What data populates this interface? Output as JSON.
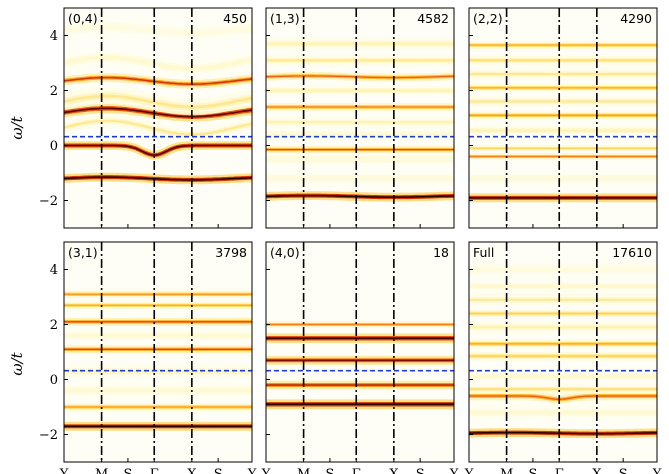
{
  "chart_data": {
    "type": "heatmap",
    "description_free": true,
    "ylabel": "ω/t",
    "ylim": [
      -3,
      5
    ],
    "yticks": [
      -2,
      0,
      2,
      4
    ],
    "ytick_labels": [
      "−2",
      "0",
      "2",
      "4"
    ],
    "x_path_labels": [
      "Y",
      "M",
      "S",
      "Γ",
      "X",
      "S",
      "Y"
    ],
    "x_path_positions": [
      0,
      1,
      1.7,
      2.4,
      3.4,
      4.1,
      5
    ],
    "high_symmetry_vlines": [
      1,
      2.4,
      3.4
    ],
    "fermi_level": 0.32,
    "colors": {
      "fermi_line": "#1f3bd6",
      "vline": "#000000",
      "colormap": [
        "#ffffff",
        "#fff8c8",
        "#ffd85a",
        "#ff9d1e",
        "#e0400a",
        "#8a0c00",
        "#2a0000"
      ]
    },
    "panels": [
      {
        "label": "(0,4)",
        "count": "450",
        "bands": [
          {
            "e": -1.2,
            "i": 1.0,
            "w": 0.08,
            "amp": 0.05
          },
          {
            "e": 0.0,
            "i": 0.95,
            "w": 0.08,
            "amp": -0.35,
            "dip": true
          },
          {
            "e": 0.65,
            "i": 0.25,
            "w": 0.1,
            "amp": 0.25
          },
          {
            "e": 1.2,
            "i": 0.9,
            "w": 0.09,
            "amp": 0.15
          },
          {
            "e": 1.6,
            "i": 0.25,
            "w": 0.15,
            "amp": 0.2
          },
          {
            "e": 2.35,
            "i": 0.7,
            "w": 0.08,
            "amp": 0.12
          },
          {
            "e": 3.0,
            "i": 0.15,
            "w": 0.15,
            "amp": 0.2
          },
          {
            "e": 4.2,
            "i": 0.1,
            "w": 0.2,
            "amp": 0.1
          }
        ]
      },
      {
        "label": "(1,3)",
        "count": "4582",
        "bands": [
          {
            "e": -1.85,
            "i": 1.0,
            "w": 0.08,
            "amp": 0.03
          },
          {
            "e": -1.2,
            "i": 0.12,
            "w": 0.15,
            "amp": 0.0
          },
          {
            "e": -0.5,
            "i": 0.12,
            "w": 0.15,
            "amp": 0.0
          },
          {
            "e": -0.15,
            "i": 0.65,
            "w": 0.06,
            "amp": 0.0
          },
          {
            "e": 0.4,
            "i": 0.15,
            "w": 0.12,
            "amp": 0.0
          },
          {
            "e": 0.85,
            "i": 0.2,
            "w": 0.1,
            "amp": 0.0
          },
          {
            "e": 1.4,
            "i": 0.55,
            "w": 0.07,
            "amp": 0.0
          },
          {
            "e": 2.0,
            "i": 0.2,
            "w": 0.1,
            "amp": 0.0
          },
          {
            "e": 2.5,
            "i": 0.6,
            "w": 0.07,
            "amp": 0.03
          },
          {
            "e": 3.1,
            "i": 0.25,
            "w": 0.1,
            "amp": 0.0
          },
          {
            "e": 3.7,
            "i": 0.2,
            "w": 0.12,
            "amp": 0.0
          }
        ]
      },
      {
        "label": "(2,2)",
        "count": "4290",
        "bands": [
          {
            "e": -1.9,
            "i": 1.0,
            "w": 0.08,
            "amp": 0.0
          },
          {
            "e": -1.2,
            "i": 0.12,
            "w": 0.15,
            "amp": 0.0
          },
          {
            "e": -0.4,
            "i": 0.55,
            "w": 0.06,
            "amp": 0.0
          },
          {
            "e": -0.1,
            "i": 0.35,
            "w": 0.06,
            "amp": 0.0
          },
          {
            "e": 0.55,
            "i": 0.2,
            "w": 0.1,
            "amp": 0.0
          },
          {
            "e": 1.1,
            "i": 0.5,
            "w": 0.07,
            "amp": 0.0
          },
          {
            "e": 1.6,
            "i": 0.25,
            "w": 0.1,
            "amp": 0.0
          },
          {
            "e": 2.1,
            "i": 0.45,
            "w": 0.07,
            "amp": 0.0
          },
          {
            "e": 2.6,
            "i": 0.25,
            "w": 0.1,
            "amp": 0.0
          },
          {
            "e": 3.1,
            "i": 0.3,
            "w": 0.08,
            "amp": 0.0
          },
          {
            "e": 3.65,
            "i": 0.45,
            "w": 0.07,
            "amp": 0.0
          }
        ]
      },
      {
        "label": "(3,1)",
        "count": "3798",
        "bands": [
          {
            "e": -1.7,
            "i": 1.0,
            "w": 0.08,
            "amp": 0.0
          },
          {
            "e": -1.0,
            "i": 0.5,
            "w": 0.07,
            "amp": 0.0
          },
          {
            "e": -0.4,
            "i": 0.15,
            "w": 0.15,
            "amp": 0.0
          },
          {
            "e": 0.3,
            "i": 0.2,
            "w": 0.12,
            "amp": 0.0
          },
          {
            "e": 1.1,
            "i": 0.65,
            "w": 0.07,
            "amp": 0.0
          },
          {
            "e": 1.6,
            "i": 0.15,
            "w": 0.12,
            "amp": 0.0
          },
          {
            "e": 2.1,
            "i": 0.65,
            "w": 0.07,
            "amp": 0.0
          },
          {
            "e": 2.7,
            "i": 0.45,
            "w": 0.07,
            "amp": 0.0
          },
          {
            "e": 3.1,
            "i": 0.5,
            "w": 0.07,
            "amp": 0.0
          }
        ]
      },
      {
        "label": "(4,0)",
        "count": "18",
        "bands": [
          {
            "e": -0.9,
            "i": 1.0,
            "w": 0.09,
            "amp": 0.0
          },
          {
            "e": -0.2,
            "i": 0.75,
            "w": 0.08,
            "amp": 0.0
          },
          {
            "e": 0.7,
            "i": 0.85,
            "w": 0.08,
            "amp": 0.0
          },
          {
            "e": 1.5,
            "i": 0.95,
            "w": 0.09,
            "amp": 0.0
          },
          {
            "e": 2.0,
            "i": 0.55,
            "w": 0.06,
            "amp": 0.0
          }
        ]
      },
      {
        "label": "Full",
        "count": "17610",
        "bands": [
          {
            "e": -1.95,
            "i": 1.0,
            "w": 0.08,
            "amp": 0.02
          },
          {
            "e": -1.2,
            "i": 0.15,
            "w": 0.15,
            "amp": 0.0
          },
          {
            "e": -0.6,
            "i": 0.6,
            "w": 0.08,
            "amp": -0.12,
            "dip": true
          },
          {
            "e": -0.35,
            "i": 0.3,
            "w": 0.08,
            "amp": 0.0
          },
          {
            "e": 0.1,
            "i": 0.15,
            "w": 0.12,
            "amp": 0.0
          },
          {
            "e": 0.85,
            "i": 0.35,
            "w": 0.08,
            "amp": 0.0
          },
          {
            "e": 1.3,
            "i": 0.45,
            "w": 0.08,
            "amp": 0.0
          },
          {
            "e": 1.9,
            "i": 0.2,
            "w": 0.12,
            "amp": 0.0
          },
          {
            "e": 2.4,
            "i": 0.35,
            "w": 0.08,
            "amp": 0.0
          },
          {
            "e": 2.9,
            "i": 0.25,
            "w": 0.1,
            "amp": 0.0
          },
          {
            "e": 3.4,
            "i": 0.15,
            "w": 0.12,
            "amp": 0.0
          },
          {
            "e": 4.0,
            "i": 0.1,
            "w": 0.2,
            "amp": 0.0
          }
        ]
      }
    ]
  }
}
